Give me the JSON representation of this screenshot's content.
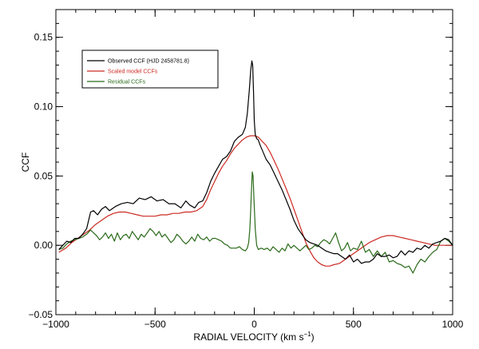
{
  "chart_data": {
    "type": "line",
    "title": "",
    "xlabel": "RADIAL VELOCITY (km s",
    "xlabel_sup": "−1",
    "xlabel_close": ")",
    "ylabel": "CCF",
    "xlim": [
      -1000,
      1000
    ],
    "ylim": [
      -0.05,
      0.17
    ],
    "x_ticks": [
      -1000,
      -500,
      0,
      500,
      1000
    ],
    "x_tick_labels": [
      "−1000",
      "−500",
      "0",
      "500",
      "1000"
    ],
    "y_ticks": [
      -0.05,
      0.0,
      0.05,
      0.1,
      0.15
    ],
    "y_tick_labels": [
      "−0.05",
      "0.00",
      "0.05",
      "0.10",
      "0.15"
    ],
    "x_minor_step": 100,
    "y_minor_step": 0.01,
    "grid": false,
    "legend_position": "top-left",
    "series": [
      {
        "name": "Observed CCF (HJD 2458781.8)",
        "color": "#000000",
        "x": [
          -985,
          -965,
          -945,
          -925,
          -905,
          -885,
          -865,
          -845,
          -825,
          -810,
          -790,
          -770,
          -750,
          -730,
          -700,
          -670,
          -640,
          -610,
          -580,
          -550,
          -520,
          -490,
          -460,
          -430,
          -400,
          -370,
          -345,
          -325,
          -300,
          -280,
          -260,
          -240,
          -220,
          -200,
          -180,
          -160,
          -140,
          -120,
          -100,
          -80,
          -60,
          -45,
          -35,
          -25,
          -18,
          -12,
          -8,
          -4,
          0,
          5,
          12,
          20,
          30,
          45,
          60,
          80,
          100,
          120,
          140,
          160,
          180,
          200,
          220,
          240,
          260,
          280,
          300,
          320,
          340,
          360,
          380,
          400,
          420,
          440,
          460,
          480,
          500,
          520,
          540,
          560,
          580,
          600,
          620,
          640,
          660,
          680,
          700,
          720,
          740,
          760,
          780,
          800,
          820,
          840,
          860,
          880,
          900,
          920,
          940,
          960,
          980,
          1000
        ],
        "values": [
          -0.003,
          0.0,
          0.003,
          0.002,
          0.005,
          0.005,
          0.008,
          0.012,
          0.024,
          0.025,
          0.022,
          0.026,
          0.028,
          0.025,
          0.028,
          0.03,
          0.031,
          0.03,
          0.034,
          0.033,
          0.035,
          0.032,
          0.033,
          0.03,
          0.03,
          0.027,
          0.032,
          0.029,
          0.027,
          0.031,
          0.032,
          0.038,
          0.046,
          0.052,
          0.057,
          0.062,
          0.064,
          0.068,
          0.075,
          0.078,
          0.08,
          0.085,
          0.095,
          0.112,
          0.126,
          0.133,
          0.13,
          0.112,
          0.09,
          0.08,
          0.077,
          0.076,
          0.072,
          0.067,
          0.062,
          0.058,
          0.052,
          0.046,
          0.04,
          0.033,
          0.026,
          0.018,
          0.012,
          0.008,
          0.004,
          0.002,
          0.001,
          0.0,
          -0.002,
          -0.004,
          -0.005,
          -0.006,
          -0.006,
          -0.008,
          -0.01,
          -0.007,
          -0.012,
          -0.01,
          -0.013,
          -0.012,
          -0.012,
          -0.01,
          -0.006,
          -0.008,
          -0.008,
          -0.007,
          -0.009,
          -0.008,
          -0.004,
          -0.007,
          -0.004,
          -0.005,
          -0.002,
          -0.003,
          0.0,
          -0.002,
          0.001,
          0.002,
          0.003,
          0.005,
          0.004,
          0.0
        ]
      },
      {
        "name": "Scaled model CCFs",
        "color": "#cc2a22",
        "x": [
          -985,
          -950,
          -920,
          -890,
          -860,
          -830,
          -800,
          -770,
          -740,
          -710,
          -680,
          -650,
          -620,
          -590,
          -560,
          -530,
          -500,
          -470,
          -440,
          -410,
          -380,
          -350,
          -320,
          -290,
          -260,
          -240,
          -220,
          -200,
          -180,
          -160,
          -140,
          -120,
          -100,
          -80,
          -60,
          -40,
          -20,
          0,
          20,
          40,
          60,
          80,
          100,
          120,
          140,
          160,
          180,
          200,
          220,
          240,
          260,
          280,
          300,
          320,
          340,
          360,
          380,
          400,
          430,
          460,
          490,
          520,
          550,
          580,
          610,
          640,
          670,
          700,
          730,
          760,
          790,
          820,
          850,
          880,
          910,
          940,
          970,
          1000
        ],
        "values": [
          -0.005,
          -0.002,
          0.002,
          0.005,
          0.008,
          0.011,
          0.015,
          0.018,
          0.021,
          0.023,
          0.024,
          0.024,
          0.023,
          0.022,
          0.021,
          0.021,
          0.021,
          0.022,
          0.022,
          0.023,
          0.023,
          0.024,
          0.024,
          0.025,
          0.028,
          0.033,
          0.04,
          0.046,
          0.052,
          0.057,
          0.061,
          0.066,
          0.07,
          0.073,
          0.076,
          0.078,
          0.079,
          0.079,
          0.078,
          0.075,
          0.072,
          0.067,
          0.061,
          0.055,
          0.048,
          0.041,
          0.034,
          0.026,
          0.018,
          0.01,
          0.002,
          -0.004,
          -0.009,
          -0.012,
          -0.014,
          -0.015,
          -0.015,
          -0.014,
          -0.013,
          -0.01,
          -0.007,
          -0.004,
          -0.001,
          0.002,
          0.004,
          0.006,
          0.007,
          0.007,
          0.006,
          0.005,
          0.004,
          0.003,
          0.002,
          0.001,
          0.0,
          0.0,
          0.0,
          0.0
        ]
      },
      {
        "name": "Residual CCFs",
        "color": "#2a6a1a",
        "x": [
          -985,
          -965,
          -945,
          -925,
          -905,
          -885,
          -865,
          -845,
          -825,
          -810,
          -795,
          -780,
          -765,
          -750,
          -735,
          -720,
          -705,
          -690,
          -675,
          -660,
          -645,
          -630,
          -615,
          -600,
          -585,
          -570,
          -555,
          -540,
          -525,
          -510,
          -495,
          -480,
          -465,
          -450,
          -435,
          -420,
          -405,
          -390,
          -375,
          -360,
          -345,
          -330,
          -315,
          -300,
          -285,
          -270,
          -255,
          -240,
          -225,
          -210,
          -195,
          -180,
          -165,
          -150,
          -135,
          -120,
          -105,
          -90,
          -75,
          -60,
          -45,
          -35,
          -28,
          -22,
          -18,
          -14,
          -10,
          -6,
          -2,
          5,
          12,
          20,
          35,
          50,
          65,
          80,
          95,
          110,
          125,
          140,
          155,
          170,
          185,
          200,
          215,
          230,
          245,
          260,
          275,
          290,
          305,
          320,
          335,
          350,
          365,
          380,
          395,
          410,
          425,
          440,
          455,
          470,
          485,
          500,
          520,
          540,
          560,
          580,
          600,
          620,
          640,
          660,
          680,
          700,
          720,
          740,
          760,
          780,
          800,
          820,
          840,
          860,
          880,
          900,
          920,
          940,
          960,
          980,
          1000
        ],
        "values": [
          -0.003,
          -0.002,
          0.001,
          0.003,
          0.004,
          0.005,
          0.006,
          0.008,
          0.011,
          0.009,
          0.007,
          0.004,
          0.006,
          0.009,
          0.005,
          0.008,
          0.003,
          0.009,
          0.004,
          0.007,
          0.008,
          0.005,
          0.01,
          0.007,
          0.004,
          0.008,
          0.006,
          0.009,
          0.012,
          0.01,
          0.007,
          0.01,
          0.006,
          0.008,
          0.005,
          0.002,
          0.004,
          0.008,
          0.006,
          0.003,
          0.001,
          0.003,
          0.006,
          0.003,
          0.008,
          0.005,
          0.004,
          0.006,
          0.003,
          0.005,
          0.005,
          0.004,
          0.003,
          0.001,
          0.0,
          -0.002,
          -0.002,
          -0.002,
          -0.001,
          -0.003,
          -0.004,
          -0.002,
          0.002,
          0.012,
          0.025,
          0.04,
          0.053,
          0.05,
          0.035,
          0.012,
          0.0,
          -0.003,
          -0.002,
          -0.003,
          -0.002,
          -0.004,
          -0.001,
          -0.003,
          -0.005,
          -0.002,
          -0.004,
          0.001,
          -0.002,
          0.0,
          -0.002,
          -0.004,
          -0.002,
          0.0,
          -0.003,
          -0.002,
          0.0,
          -0.001,
          0.002,
          0.004,
          0.003,
          0.001,
          0.005,
          0.009,
          0.002,
          -0.004,
          -0.002,
          0.002,
          -0.004,
          -0.002,
          -0.003,
          0.003,
          -0.005,
          -0.003,
          -0.008,
          -0.004,
          -0.008,
          -0.005,
          -0.012,
          -0.011,
          -0.013,
          -0.014,
          -0.016,
          -0.015,
          -0.02,
          -0.014,
          -0.01,
          -0.012,
          -0.008,
          -0.005,
          -0.003,
          0.003,
          0.005,
          0.003,
          0.0
        ]
      }
    ]
  }
}
